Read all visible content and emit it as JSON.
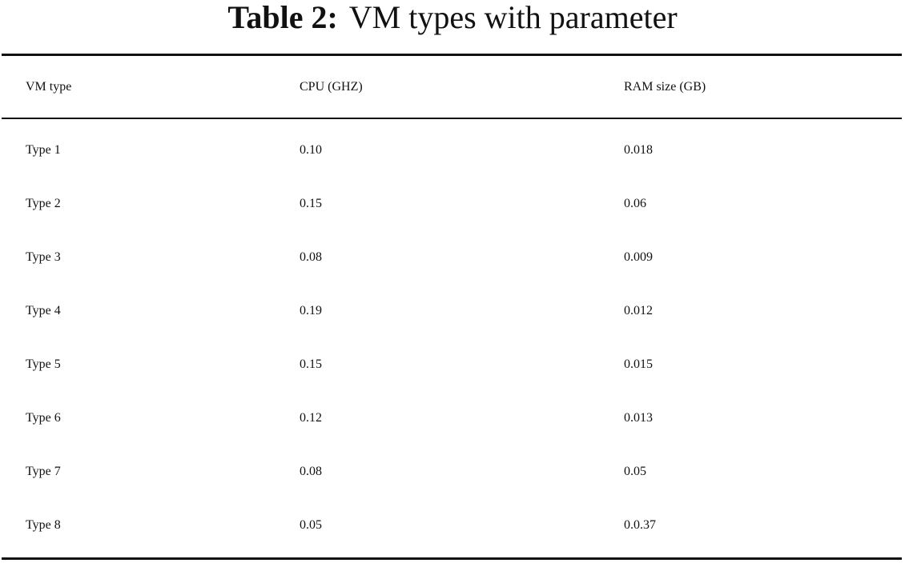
{
  "caption": {
    "label": "Table 2:",
    "text": "VM types with parameter"
  },
  "table": {
    "headers": [
      "VM type",
      "CPU (GHZ)",
      "RAM size (GB)"
    ],
    "rows": [
      [
        "Type 1",
        "0.10",
        "0.018"
      ],
      [
        "Type 2",
        "0.15",
        "0.06"
      ],
      [
        "Type 3",
        "0.08",
        "0.009"
      ],
      [
        "Type 4",
        "0.19",
        "0.012"
      ],
      [
        "Type 5",
        "0.15",
        "0.015"
      ],
      [
        "Type 6",
        "0.12",
        "0.013"
      ],
      [
        "Type 7",
        "0.08",
        "0.05"
      ],
      [
        "Type 8",
        "0.05",
        "0.0.37"
      ]
    ]
  }
}
